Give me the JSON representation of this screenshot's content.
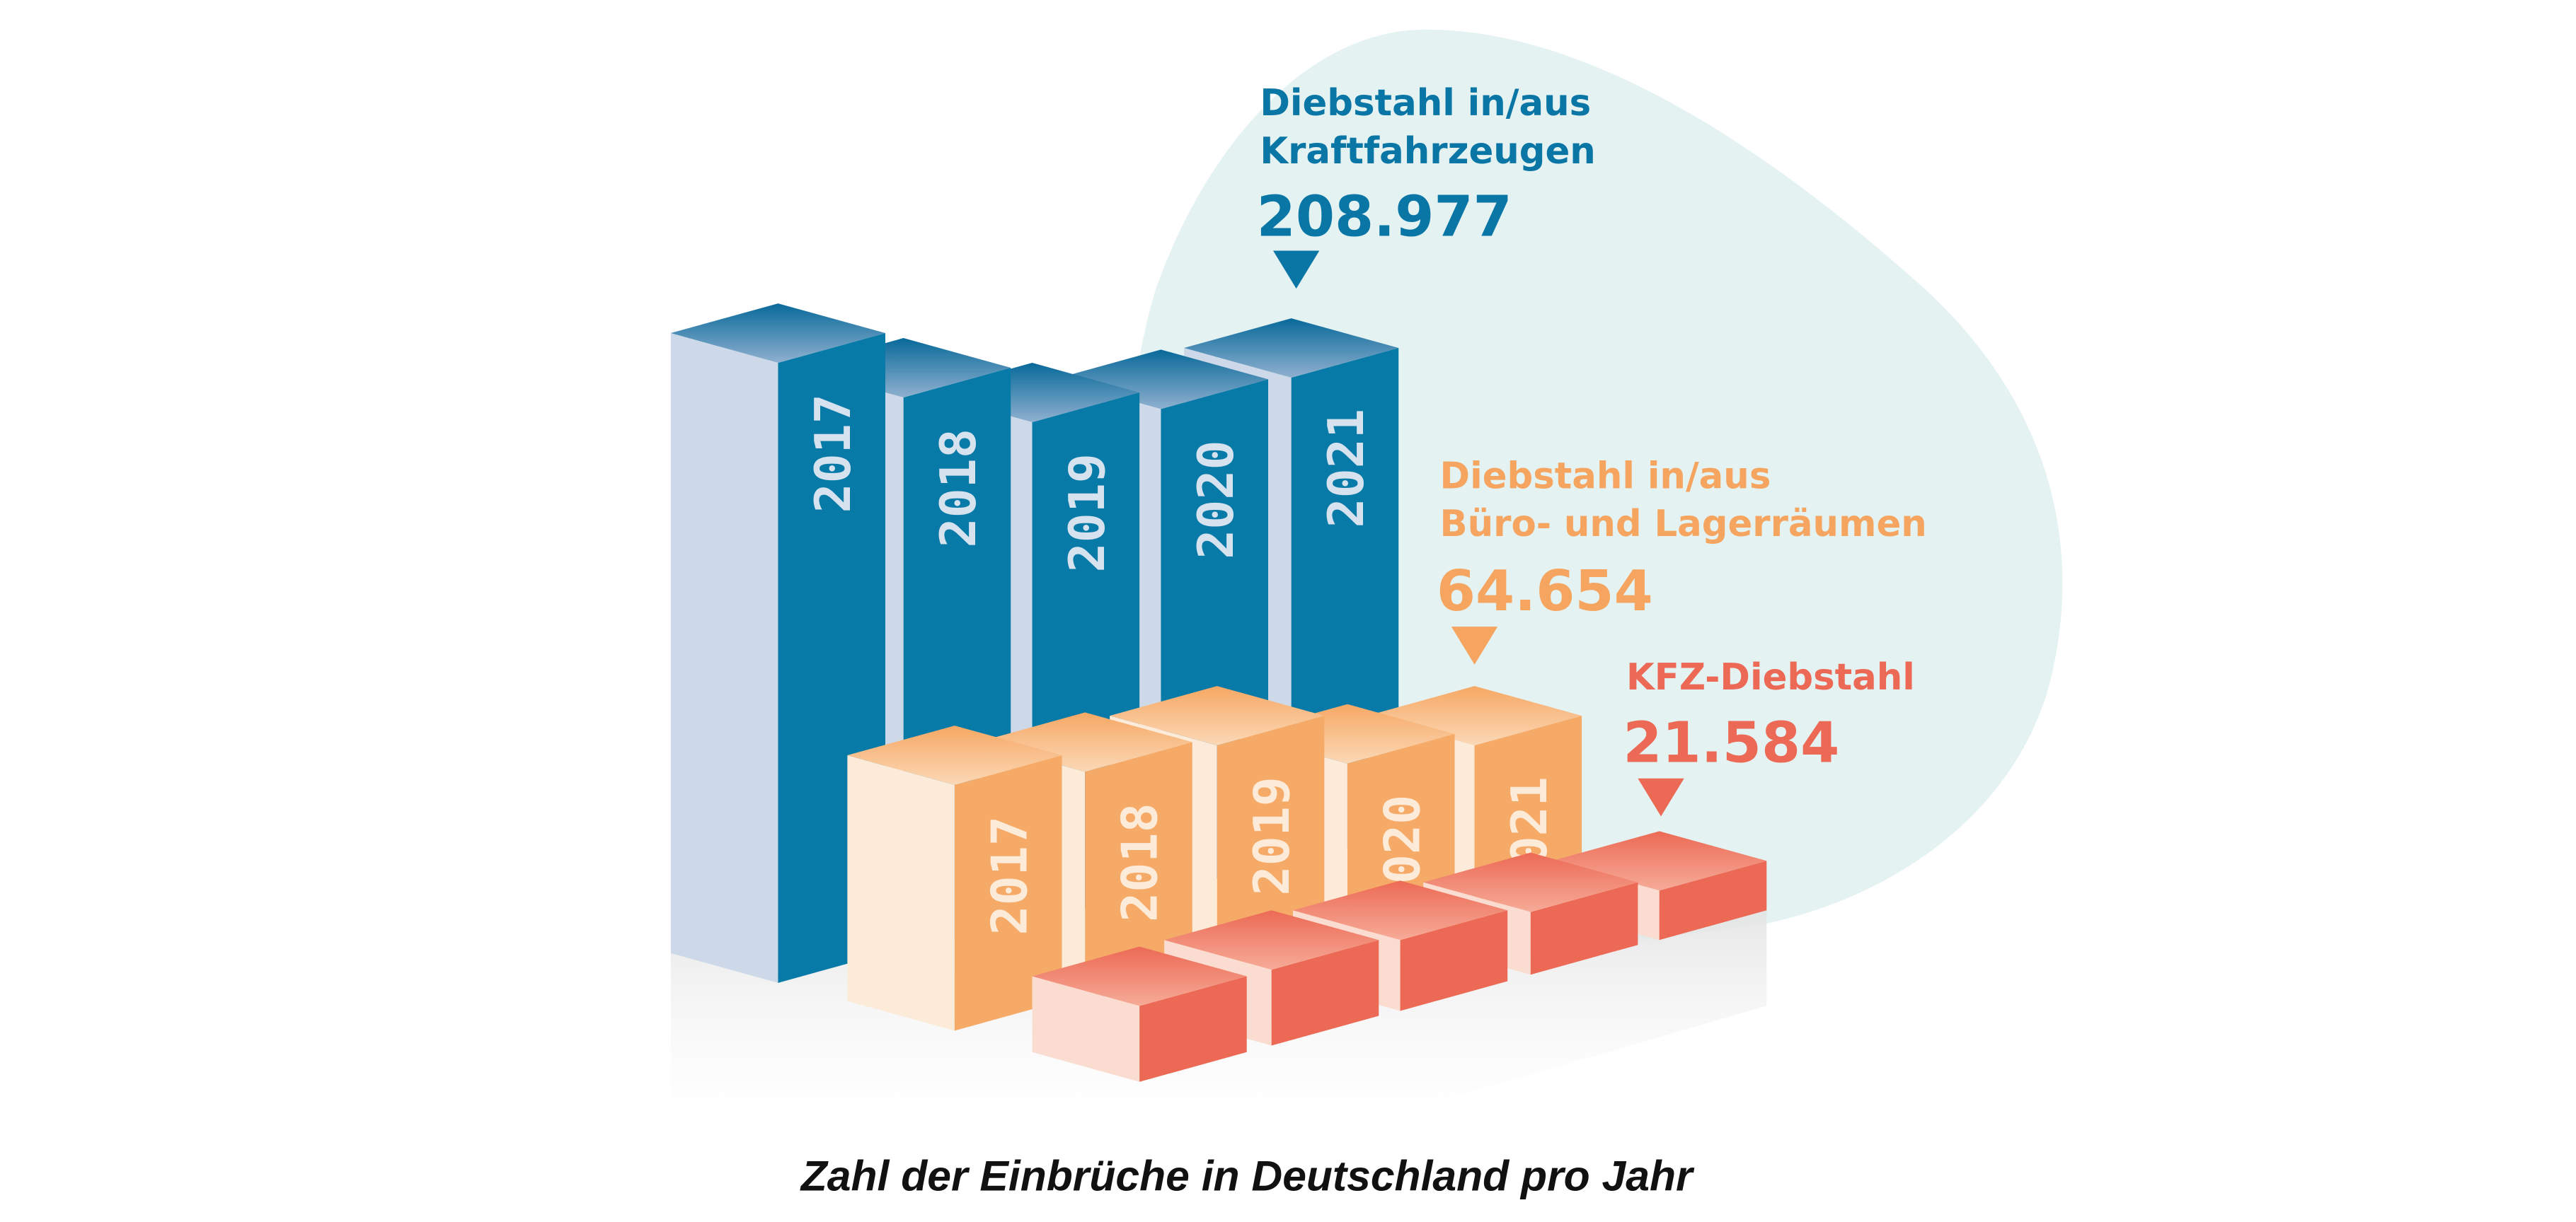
{
  "chart_data": {
    "type": "bar",
    "style": "3d-isometric",
    "title": "Zahl der Einbrüche in Deutschland pro Jahr",
    "categories": [
      "2017",
      "2018",
      "2019",
      "2020",
      "2021"
    ],
    "grid": false,
    "series": [
      {
        "name_lines": [
          "Diebstahl in/aus",
          "Kraftfahrzeugen"
        ],
        "value_2021": "208.977",
        "color": "#077aa8",
        "side_color": "#cdd9e8"
      },
      {
        "name_lines": [
          "Diebstahl in/aus",
          "Büro- und Lagerräumen"
        ],
        "value_2021": "64.654",
        "color": "#f6aa68",
        "side_color": "#fdebd9"
      },
      {
        "name_lines": [
          "KFZ-Diebstahl"
        ],
        "value_2021": "21.584",
        "color": "#ec6a55",
        "side_color": "#fbdcd0"
      }
    ],
    "background_blob_color": "#e4f2f2",
    "callout_icon": "triangle-down-icon"
  }
}
